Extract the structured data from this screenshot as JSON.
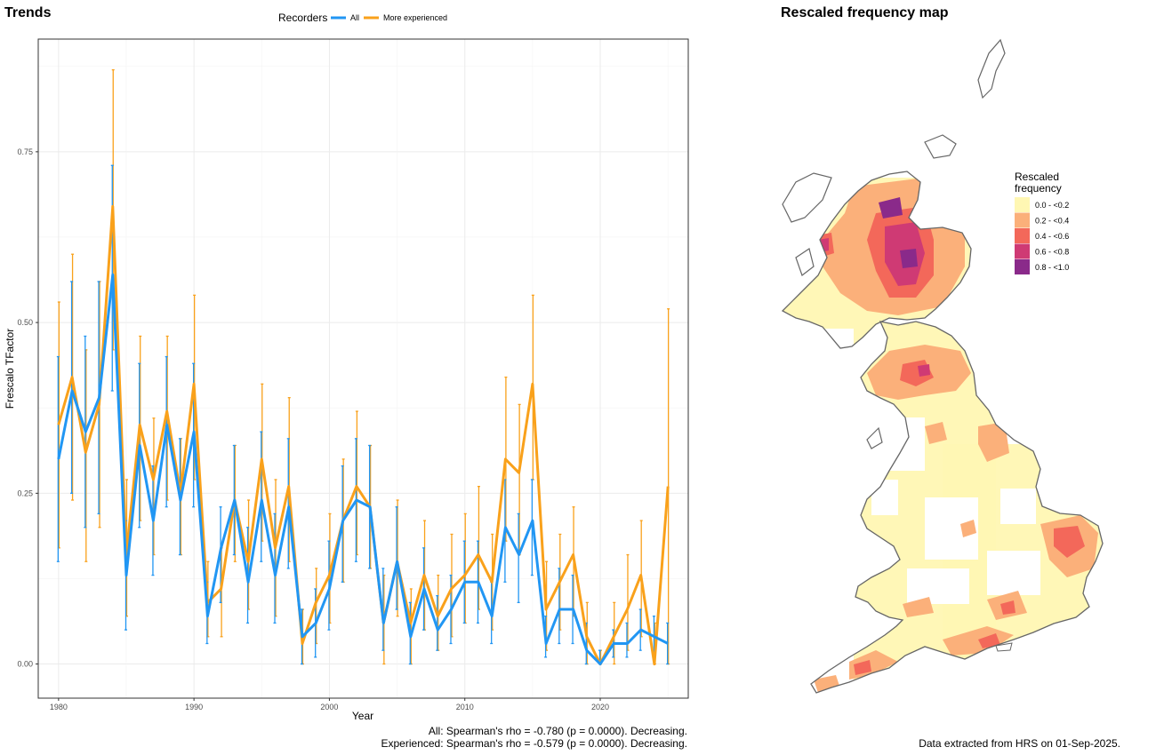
{
  "trends_title": "Trends",
  "map_title": "Rescaled frequency map",
  "legend": {
    "title": "Recorders",
    "all_label": "All",
    "experienced_label": "More experienced"
  },
  "colors": {
    "all": "#2196f3",
    "experienced": "#f9a11b"
  },
  "stats": {
    "all": "All: Spearman's rho = -0.780 (p = 0.0000). Decreasing.",
    "experienced": "Experienced: Spearman's rho = -0.579 (p = 0.0000). Decreasing."
  },
  "footnote": "Data extracted from HRS on 01-Sep-2025.",
  "chart_data": {
    "type": "line",
    "title": "Trends",
    "xlabel": "Year",
    "ylabel": "Frescalo TFactor",
    "xlim": [
      1978.5,
      2026.5
    ],
    "ylim": [
      -0.05,
      0.915
    ],
    "x_ticks": [
      1980,
      1990,
      2000,
      2010,
      2020
    ],
    "y_ticks": [
      0.0,
      0.25,
      0.5,
      0.75
    ],
    "y_tick_labels": [
      "0.00",
      "0.25",
      "0.50",
      "0.75"
    ],
    "x": [
      1980,
      1981,
      1982,
      1983,
      1984,
      1985,
      1986,
      1987,
      1988,
      1989,
      1990,
      1991,
      1992,
      1993,
      1994,
      1995,
      1996,
      1997,
      1998,
      1999,
      2000,
      2001,
      2002,
      2003,
      2004,
      2005,
      2006,
      2007,
      2008,
      2009,
      2010,
      2011,
      2012,
      2013,
      2014,
      2015,
      2016,
      2017,
      2018,
      2019,
      2020,
      2021,
      2022,
      2023,
      2024,
      2025
    ],
    "series": [
      {
        "name": "All",
        "values": [
          0.3,
          0.4,
          0.34,
          0.39,
          0.57,
          0.13,
          0.32,
          0.21,
          0.35,
          0.24,
          0.34,
          0.07,
          0.17,
          0.24,
          0.12,
          0.24,
          0.13,
          0.23,
          0.04,
          0.06,
          0.11,
          0.21,
          0.24,
          0.23,
          0.06,
          0.15,
          0.04,
          0.11,
          0.05,
          0.08,
          0.12,
          0.12,
          0.07,
          0.2,
          0.16,
          0.21,
          0.03,
          0.08,
          0.08,
          0.02,
          0.0,
          0.03,
          0.03,
          0.05,
          0.04,
          0.03
        ],
        "lower": [
          0.15,
          0.25,
          0.2,
          0.22,
          0.4,
          0.05,
          0.2,
          0.13,
          0.23,
          0.16,
          0.23,
          0.03,
          0.09,
          0.16,
          0.06,
          0.15,
          0.06,
          0.14,
          0.0,
          0.01,
          0.05,
          0.12,
          0.15,
          0.14,
          0.02,
          0.08,
          0.0,
          0.05,
          0.02,
          0.03,
          0.06,
          0.06,
          0.03,
          0.12,
          0.09,
          0.13,
          0.01,
          0.03,
          0.03,
          0.0,
          0.0,
          0.01,
          0.01,
          0.02,
          0.01,
          0.0
        ],
        "upper": [
          0.45,
          0.56,
          0.48,
          0.56,
          0.73,
          0.21,
          0.44,
          0.29,
          0.45,
          0.33,
          0.44,
          0.12,
          0.23,
          0.32,
          0.2,
          0.34,
          0.22,
          0.33,
          0.08,
          0.11,
          0.18,
          0.29,
          0.33,
          0.32,
          0.14,
          0.23,
          0.09,
          0.17,
          0.1,
          0.13,
          0.18,
          0.18,
          0.12,
          0.27,
          0.22,
          0.27,
          0.07,
          0.14,
          0.13,
          0.06,
          0.02,
          0.05,
          0.06,
          0.08,
          0.07,
          0.06
        ]
      },
      {
        "name": "More experienced",
        "values": [
          0.35,
          0.42,
          0.31,
          0.38,
          0.67,
          0.16,
          0.35,
          0.27,
          0.37,
          0.25,
          0.41,
          0.09,
          0.11,
          0.24,
          0.15,
          0.3,
          0.17,
          0.26,
          0.03,
          0.09,
          0.13,
          0.21,
          0.26,
          0.23,
          0.06,
          0.15,
          0.06,
          0.13,
          0.07,
          0.11,
          0.13,
          0.16,
          0.12,
          0.3,
          0.28,
          0.41,
          0.08,
          0.12,
          0.16,
          0.04,
          0.0,
          0.04,
          0.08,
          0.13,
          0.0,
          0.26
        ],
        "lower": [
          0.17,
          0.24,
          0.15,
          0.2,
          0.46,
          0.07,
          0.21,
          0.16,
          0.24,
          0.16,
          0.27,
          0.04,
          0.04,
          0.15,
          0.08,
          0.18,
          0.07,
          0.15,
          0.0,
          0.03,
          0.06,
          0.12,
          0.16,
          0.14,
          0.0,
          0.07,
          0.0,
          0.05,
          0.02,
          0.04,
          0.06,
          0.08,
          0.05,
          0.18,
          0.16,
          0.27,
          0.02,
          0.05,
          0.07,
          0.0,
          0.0,
          0.0,
          0.02,
          0.04,
          0.0,
          0.0
        ],
        "upper": [
          0.53,
          0.6,
          0.46,
          0.56,
          0.87,
          0.27,
          0.48,
          0.36,
          0.48,
          0.33,
          0.54,
          0.15,
          0.17,
          0.32,
          0.24,
          0.41,
          0.27,
          0.39,
          0.08,
          0.14,
          0.22,
          0.3,
          0.37,
          0.32,
          0.13,
          0.24,
          0.11,
          0.21,
          0.13,
          0.19,
          0.22,
          0.26,
          0.19,
          0.42,
          0.38,
          0.54,
          0.15,
          0.19,
          0.23,
          0.09,
          0.02,
          0.09,
          0.16,
          0.21,
          0.06,
          0.52
        ]
      }
    ],
    "grid": true,
    "legend_position": "top"
  },
  "map": {
    "legend_title_line1": "Rescaled",
    "legend_title_line2": "frequency",
    "classes": [
      {
        "label": "0.0 - <0.2",
        "color": "#fff7b3"
      },
      {
        "label": "0.2 - <0.4",
        "color": "#fbb07a"
      },
      {
        "label": "0.4 - <0.6",
        "color": "#f3685a"
      },
      {
        "label": "0.6 - <0.8",
        "color": "#cf3a74"
      },
      {
        "label": "0.8 - <1.0",
        "color": "#8a2a8a"
      }
    ]
  }
}
